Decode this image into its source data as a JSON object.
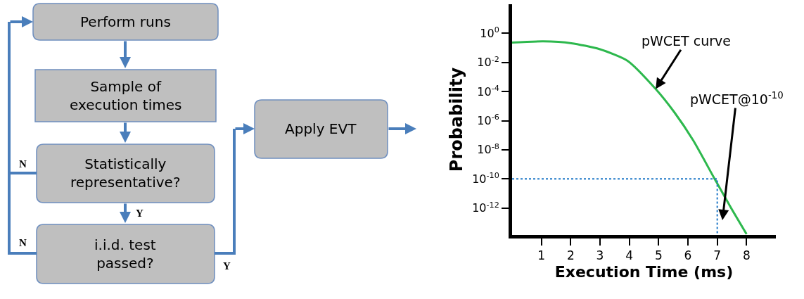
{
  "chart_data": [
    {
      "type": "other",
      "annotations": [
        "Perform runs",
        "Sample of\nexecution times",
        "Statistically\nrepresentative?",
        "i.i.d. test\npassed?",
        "Apply EVT",
        "N",
        "N",
        "Y",
        "Y"
      ]
    },
    {
      "type": "line",
      "xlabel": "Execution Time (ms)",
      "ylabel": "Probability",
      "log": "y",
      "xlim": [
        0,
        9
      ],
      "ylim": [
        1.4e-14,
        100
      ],
      "xticks": [
        1,
        2,
        3,
        4,
        5,
        6,
        7,
        8
      ],
      "yticks": [
        {
          "value": 1,
          "label": "10$^{0}$"
        },
        {
          "value": 0.01,
          "label": "10$^{-2}$"
        },
        {
          "value": 0.0001,
          "label": "10$^{-4}$"
        },
        {
          "value": 1e-06,
          "label": "10$^{-6}$"
        },
        {
          "value": 1e-08,
          "label": "10$^{-8}$"
        },
        {
          "value": 1e-10,
          "label": "10$^{-10}$"
        },
        {
          "value": 1e-12,
          "label": "10$^{-12}$"
        }
      ],
      "marker": "none",
      "series": [
        {
          "color": "#2db84d",
          "line_style": "solid",
          "x": [
            0,
            1.06,
            2.02,
            2.98,
            3.94,
            4.9,
            5.54,
            6.18,
            6.9,
            7.46,
            8.0
          ],
          "values": [
            0.23,
            0.28,
            0.21,
            0.083,
            0.013,
            0.00015,
            3.7e-06,
            4.4e-08,
            1.1e-10,
            1.1e-12,
            1.6e-14
          ]
        },
        {
          "color": "#1f78c8",
          "line_style": "dotted",
          "x": [
            0,
            7,
            7
          ],
          "values": [
            1e-10,
            1e-10,
            1.4e-14
          ]
        }
      ],
      "annotations": [
        {
          "text": "pWCET curve",
          "x": 4.9,
          "y": 0.00015
        },
        "pWCET@10$^{-10}$"
      ]
    }
  ]
}
